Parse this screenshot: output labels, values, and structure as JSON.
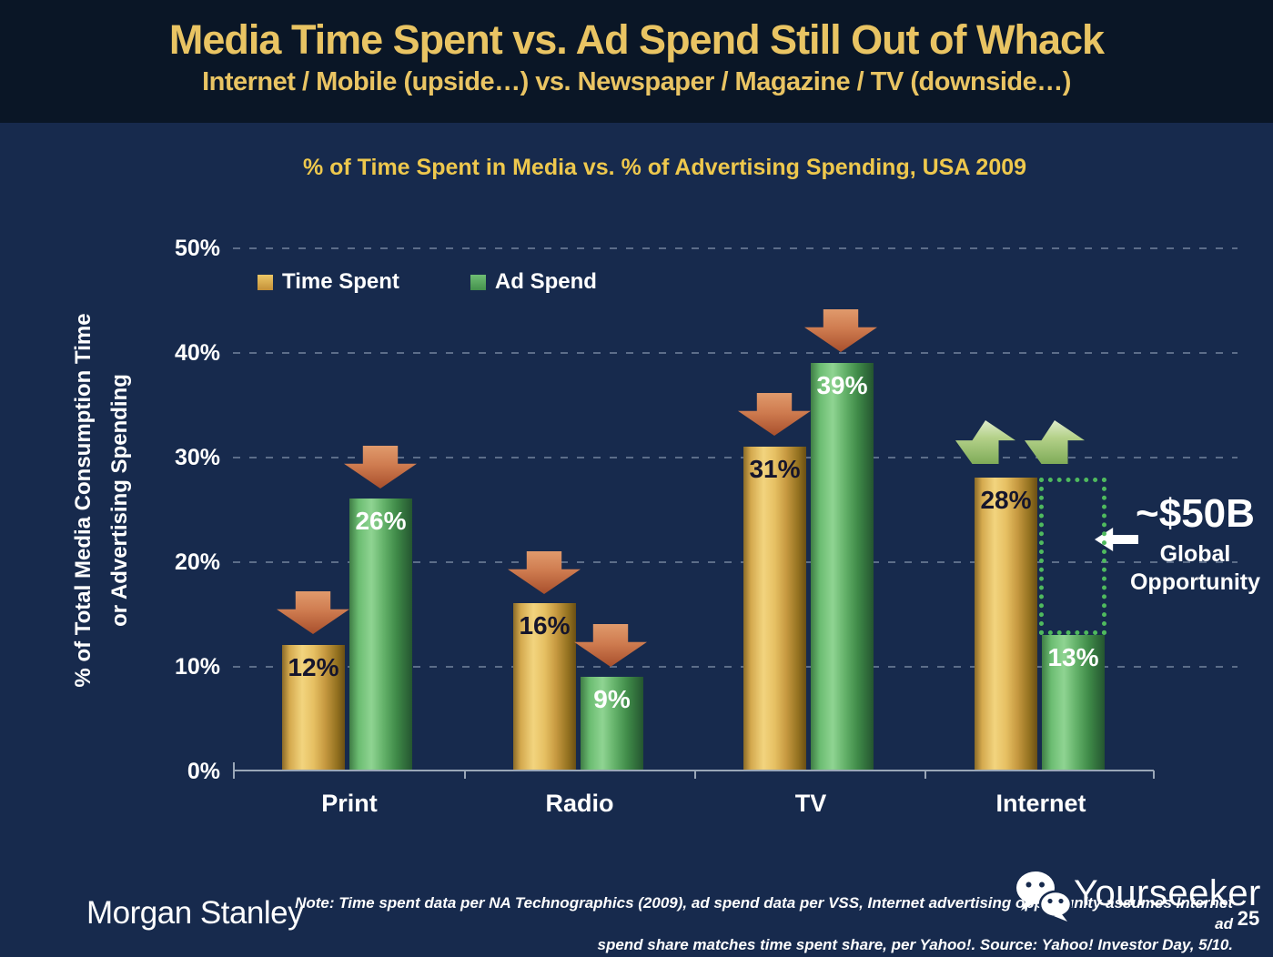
{
  "slide": {
    "title": "Media Time Spent vs. Ad Spend Still Out of Whack",
    "subtitle": "Internet / Mobile (upside…) vs. Newspaper / Magazine / TV (downside…)"
  },
  "chart_data": {
    "type": "bar",
    "title": "% of Time Spent in Media vs. % of Advertising Spending, USA 2009",
    "ylabel_line1": "% of Total Media Consumption Time",
    "ylabel_line2": "or Advertising Spending",
    "categories": [
      "Print",
      "Radio",
      "TV",
      "Internet"
    ],
    "series": [
      {
        "name": "Time Spent",
        "color": "#e3b95b",
        "values": [
          12,
          16,
          31,
          28
        ],
        "labels": [
          "12%",
          "16%",
          "31%",
          "28%"
        ]
      },
      {
        "name": "Ad Spend",
        "color": "#5aa85f",
        "values": [
          26,
          9,
          39,
          13
        ],
        "labels": [
          "26%",
          "9%",
          "39%",
          "13%"
        ]
      }
    ],
    "yticks": [
      "50%",
      "40%",
      "30%",
      "20%",
      "10%",
      "0%"
    ],
    "ylim": [
      0,
      50
    ],
    "grid": "dashed horizontal gridlines at 10% intervals",
    "legend_position": "top-left inside plot",
    "annotations": {
      "down_arrows_over": [
        "Print Time Spent",
        "Print Ad Spend",
        "Radio Time Spent",
        "Radio Ad Spend",
        "TV Time Spent",
        "TV Ad Spend"
      ],
      "up_arrows_over": [
        "Internet"
      ],
      "opportunity_value": "~$50B",
      "opportunity_label_line1": "Global",
      "opportunity_label_line2": "Opportunity",
      "opportunity_box": "dotted rectangle from Internet Ad Spend 13% up to 28% level"
    }
  },
  "footer": {
    "logo": "Morgan Stanley",
    "note_line1": "Note: Time spent data per NA Technographics (2009), ad spend data per VSS, Internet advertising opportunity assumes Internet ad",
    "note_line2": "spend share matches time spent share, per Yahoo!. Source: Yahoo! Investor Day, 5/10.",
    "watermark": "Yourseeker",
    "page_number": "25"
  },
  "colors": {
    "header_background": "#0a1626",
    "slide_background": "#172a4d",
    "title_gold": "#e9c463",
    "chart_title_gold": "#eec84d",
    "bar_gold": "#e3b95b",
    "bar_green": "#5aa85f",
    "down_arrow": "#c06a42",
    "up_arrow": "#a9c97e",
    "dotted_box_green": "#4fba5e",
    "text_white": "#ffffff"
  }
}
